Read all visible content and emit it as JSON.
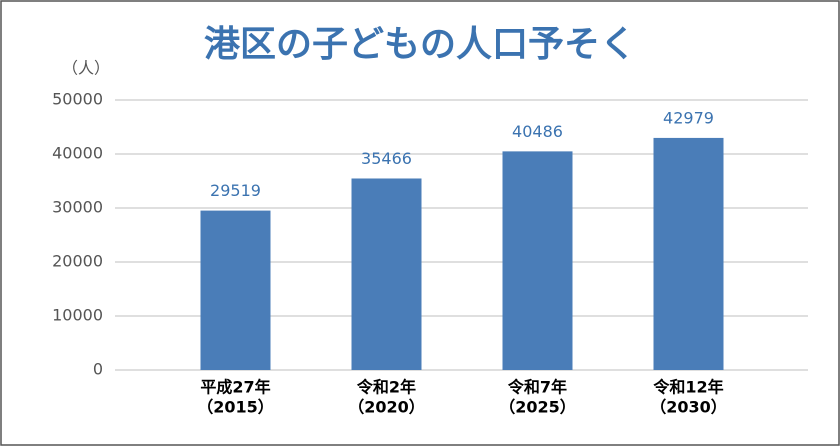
{
  "chart_data": {
    "type": "bar",
    "title": "港区の子どもの人口予そく",
    "y_label": "（人）",
    "categories": [
      [
        "平成27年",
        "（2015）"
      ],
      [
        "令和2年",
        "（2020）"
      ],
      [
        "令和7年",
        "（2025）"
      ],
      [
        "令和12年",
        "（2030）"
      ]
    ],
    "values": [
      29519,
      35466,
      40486,
      42979
    ],
    "color": "#4a7db8",
    "ylim": [
      0,
      50000
    ],
    "yticks": [
      0,
      10000,
      20000,
      30000,
      40000,
      50000
    ],
    "grid": true
  }
}
